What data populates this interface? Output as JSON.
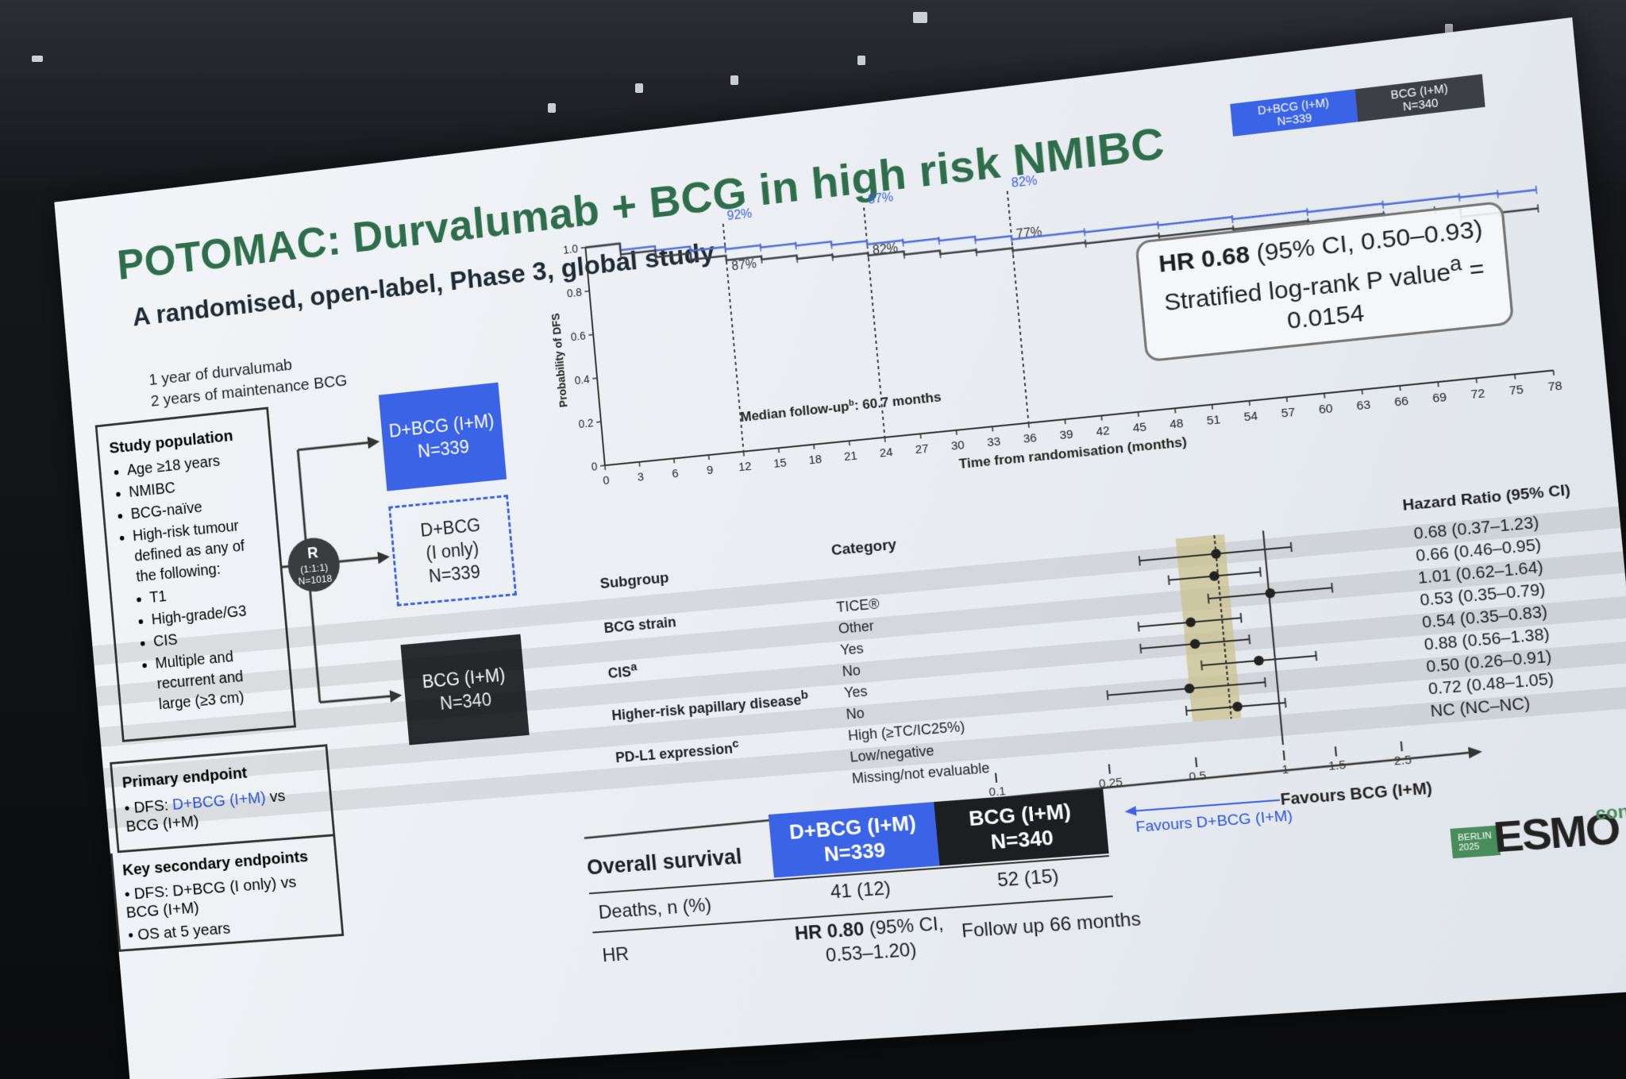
{
  "slide": {
    "title": "POTOMAC: Durvalumab + BCG in high risk NMIBC",
    "subtitle": "A randomised, open-label, Phase 3, global study"
  },
  "design": {
    "arm_note_line1": "1 year of durvalumab",
    "arm_note_line2": "2 years of maintenance BCG",
    "population_title": "Study population",
    "population_items": [
      "Age ≥18 years",
      "NMIBC",
      "BCG-naïve",
      "High-risk tumour defined as any of the following:"
    ],
    "population_subitems": [
      "T1",
      "High-grade/G3",
      "CIS",
      "Multiple and recurrent and large (≥3 cm)"
    ],
    "randomisation": {
      "letter": "R",
      "ratio": "(1:1:1)",
      "n": "N=1018"
    },
    "arms": [
      {
        "label": "D+BCG (I+M)",
        "n": "N=339",
        "color": "#3a63e6"
      },
      {
        "label": "D+BCG",
        "label2": "(I only)",
        "n": "N=339"
      },
      {
        "label": "BCG (I+M)",
        "n": "N=340",
        "color": "#2a2b2e"
      }
    ],
    "primary_title": "Primary endpoint",
    "primary_item_prefix": "DFS: ",
    "primary_item_blue": "D+BCG (I+M)",
    "primary_item_suffix": " vs BCG (I+M)",
    "secondary_title": "Key secondary endpoints",
    "secondary_items": [
      "DFS: D+BCG (I only) vs BCG (I+M)",
      "OS at 5 years"
    ]
  },
  "chart_data": [
    {
      "type": "line",
      "title": "",
      "ylabel": "Probability of DFS",
      "xlabel": "Time from randomisation (months)",
      "x_ticks": [
        0,
        3,
        6,
        9,
        12,
        15,
        18,
        21,
        24,
        27,
        30,
        33,
        36,
        39,
        42,
        45,
        48,
        51,
        54,
        57,
        60,
        63,
        66,
        69,
        72,
        75,
        78
      ],
      "y_ticks": [
        "0",
        "0.2",
        "0.4",
        "0.6",
        "0.8",
        "1.0"
      ],
      "ylim": [
        0,
        1.0
      ],
      "xlim": [
        0,
        78
      ],
      "legend": [
        {
          "name": "D+BCG (I+M)",
          "n": "N=339",
          "color": "#3a63e6"
        },
        {
          "name": "BCG (I+M)",
          "n": "N=340",
          "color": "#3c3f44"
        }
      ],
      "series": [
        {
          "name": "D+BCG (I+M)",
          "color": "#4f6fd8",
          "x": [
            0,
            3,
            6,
            9,
            12,
            15,
            18,
            21,
            24,
            27,
            30,
            33,
            36,
            42,
            48,
            54,
            60,
            66,
            72,
            75,
            78
          ],
          "y": [
            1.0,
            0.97,
            0.95,
            0.93,
            0.92,
            0.91,
            0.9,
            0.885,
            0.87,
            0.86,
            0.85,
            0.835,
            0.82,
            0.815,
            0.81,
            0.8,
            0.795,
            0.79,
            0.785,
            0.78,
            0.78
          ]
        },
        {
          "name": "BCG (I+M)",
          "color": "#3c3f44",
          "x": [
            0,
            3,
            6,
            9,
            12,
            15,
            18,
            21,
            24,
            27,
            30,
            33,
            36,
            42,
            48,
            54,
            60,
            66,
            70,
            72,
            75,
            78
          ],
          "y": [
            1.0,
            0.95,
            0.92,
            0.89,
            0.87,
            0.855,
            0.84,
            0.83,
            0.82,
            0.805,
            0.79,
            0.78,
            0.77,
            0.765,
            0.76,
            0.755,
            0.75,
            0.745,
            0.74,
            0.7,
            0.7,
            0.7
          ]
        }
      ],
      "landmarks": [
        {
          "month": 12,
          "top": "92%",
          "bottom": "87%"
        },
        {
          "month": 24,
          "top": "87%",
          "bottom": "82%"
        },
        {
          "month": 36,
          "top": "82%",
          "bottom": "77%"
        }
      ],
      "median_followup": "Median follow-up",
      "median_followup_sup": "b",
      "median_followup_value": ": 60.7 months",
      "hr_text_bold": "HR 0.68",
      "hr_text_rest": " (95% CI, 0.50–0.93)",
      "hr_line2": "Stratified log-rank P value",
      "hr_line2_sup": "a",
      "hr_line2_eq": " =",
      "hr_line3": "0.0154"
    },
    {
      "type": "scatter",
      "title": "",
      "xlabel": "",
      "x_scale": "log",
      "x_ticks": [
        "0.1",
        "0.25",
        "0.5",
        "1",
        "1.5",
        "2.5"
      ],
      "x_tick_values": [
        0.1,
        0.25,
        0.5,
        1,
        1.5,
        2.5
      ],
      "reference_line": 1,
      "overall_hr": 0.68,
      "left_label": "Favours D+BCG (I+M)",
      "right_label": "Favours BCG (I+M)",
      "columns": {
        "subgroup": "Subgroup",
        "category": "Category",
        "hr": "Hazard Ratio (95% CI)"
      },
      "rows": [
        {
          "subgroup": "",
          "category": "",
          "hr": 0.68,
          "lo": 0.37,
          "hi": 1.23,
          "text": "0.68 (0.37–1.23)"
        },
        {
          "subgroup": "BCG strain",
          "category": "TICE®",
          "hr": 0.66,
          "lo": 0.46,
          "hi": 0.95,
          "text": "0.66 (0.46–0.95)"
        },
        {
          "subgroup": "",
          "category": "Other",
          "hr": 1.01,
          "lo": 0.62,
          "hi": 1.64,
          "text": "1.01 (0.62–1.64)"
        },
        {
          "subgroup": "CIS",
          "subgroup_sup": "a",
          "category": "Yes",
          "hr": 0.53,
          "lo": 0.35,
          "hi": 0.79,
          "text": "0.53 (0.35–0.79)"
        },
        {
          "subgroup": "",
          "category": "No",
          "hr": 0.54,
          "lo": 0.35,
          "hi": 0.83,
          "text": "0.54 (0.35–0.83)"
        },
        {
          "subgroup": "Higher-risk papillary disease",
          "subgroup_sup": "b",
          "category": "Yes",
          "hr": 0.88,
          "lo": 0.56,
          "hi": 1.38,
          "text": "0.88 (0.56–1.38)"
        },
        {
          "subgroup": "",
          "category": "No",
          "hr": 0.5,
          "lo": 0.26,
          "hi": 0.91,
          "text": "0.50 (0.26–0.91)"
        },
        {
          "subgroup": "PD-L1 expression",
          "subgroup_sup": "c",
          "category": "High (≥TC/IC25%)",
          "hr": 0.72,
          "lo": 0.48,
          "hi": 1.05,
          "text": "0.72 (0.48–1.05)"
        },
        {
          "subgroup": "",
          "category": "Low/negative",
          "hr": null,
          "lo": null,
          "hi": null,
          "text": "NC (NC–NC)"
        },
        {
          "subgroup": "",
          "category": "Missing/not evaluable",
          "hr": null,
          "lo": null,
          "hi": null,
          "text": ""
        }
      ]
    }
  ],
  "os_table": {
    "title": "Overall survival",
    "col1": {
      "label": "D+BCG (I+M)",
      "n": "N=339"
    },
    "col2": {
      "label": "BCG (I+M)",
      "n": "N=340"
    },
    "deaths_label": "Deaths, n (%)",
    "deaths_col1": "41 (12)",
    "deaths_col2": "52 (15)",
    "hr_label": "HR",
    "hr_col1_bold": "HR 0.80",
    "hr_col1_rest": " (95% CI,",
    "hr_col1_line2": "0.53–1.20)",
    "followup": "Follow up 66 months"
  },
  "branding": {
    "city": "BERLIN",
    "year": "2025",
    "logo": "ESMO",
    "congress": "congress"
  }
}
